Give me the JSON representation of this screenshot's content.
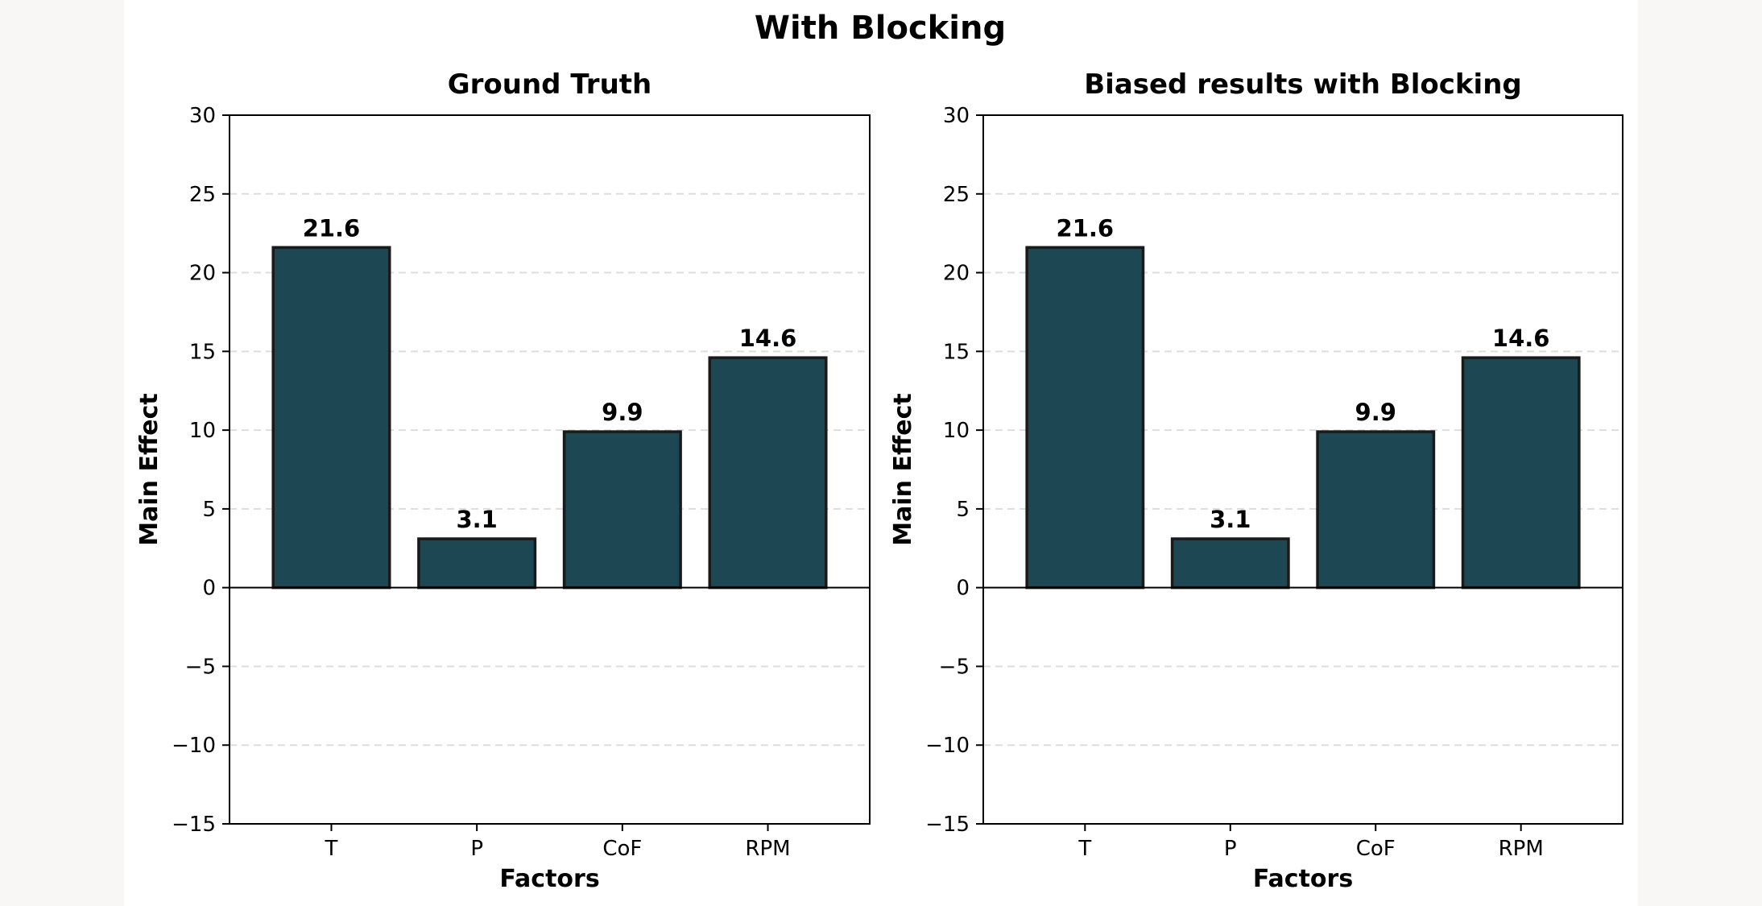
{
  "figure": {
    "suptitle": "With Blocking"
  },
  "chart_data": [
    {
      "type": "bar",
      "title": "Ground Truth",
      "xlabel": "Factors",
      "ylabel": "Main Effect",
      "categories": [
        "T",
        "P",
        "CoF",
        "RPM"
      ],
      "values": [
        21.6,
        3.1,
        9.9,
        14.6
      ],
      "value_labels": [
        "21.6",
        "3.1",
        "9.9",
        "14.6"
      ],
      "ylim": [
        -15,
        30
      ],
      "yticks": [
        30,
        25,
        20,
        15,
        10,
        5,
        0,
        -5,
        -10,
        -15
      ],
      "ytick_labels": [
        "30",
        "25",
        "20",
        "15",
        "10",
        "5",
        "0",
        "−5",
        "−10",
        "−15"
      ],
      "grid": "y, dashed",
      "bar_color": "#1d4753",
      "edge_color": "#1a1a1a"
    },
    {
      "type": "bar",
      "title": "Biased results with Blocking",
      "xlabel": "Factors",
      "ylabel": "Main Effect",
      "categories": [
        "T",
        "P",
        "CoF",
        "RPM"
      ],
      "values": [
        21.6,
        3.1,
        9.9,
        14.6
      ],
      "value_labels": [
        "21.6",
        "3.1",
        "9.9",
        "14.6"
      ],
      "ylim": [
        -15,
        30
      ],
      "yticks": [
        30,
        25,
        20,
        15,
        10,
        5,
        0,
        -5,
        -10,
        -15
      ],
      "ytick_labels": [
        "30",
        "25",
        "20",
        "15",
        "10",
        "5",
        "0",
        "−5",
        "−10",
        "−15"
      ],
      "grid": "y, dashed",
      "bar_color": "#1d4753",
      "edge_color": "#1a1a1a"
    }
  ]
}
